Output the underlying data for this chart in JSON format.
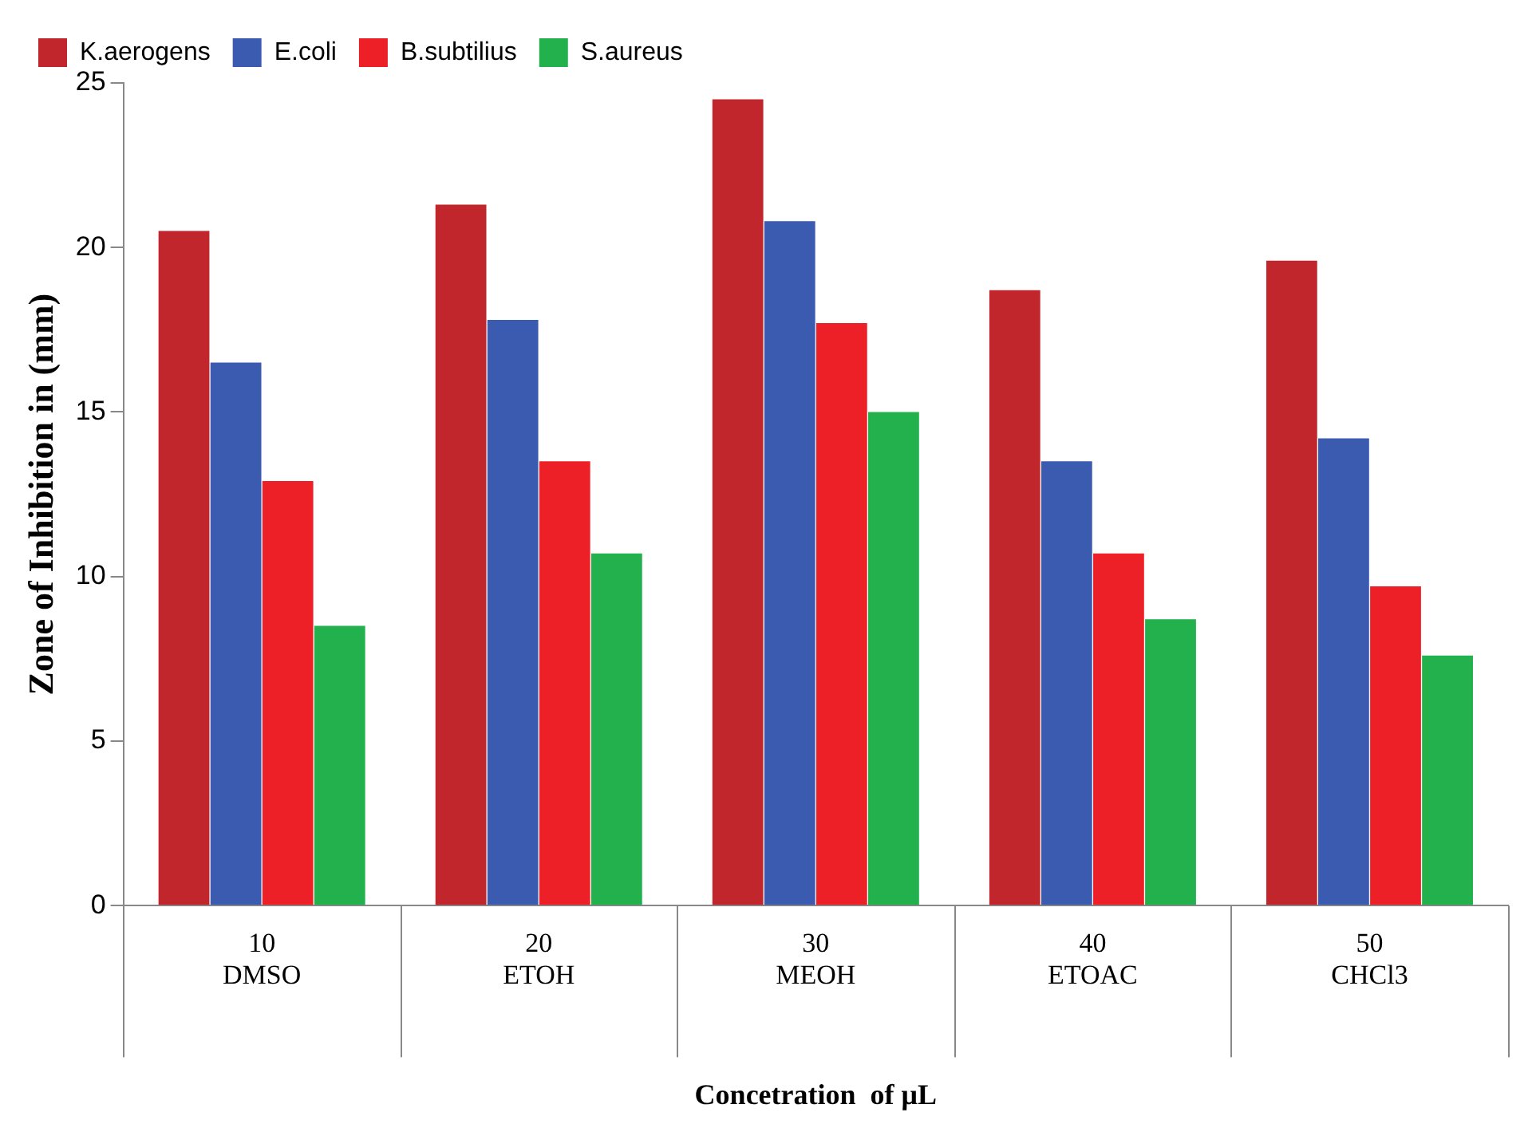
{
  "chart_data": {
    "type": "bar",
    "xlabel": "Concetration  of μL",
    "ylabel": "Zone of Inhibition in (mm)",
    "categories": [
      "10\nDMSO",
      "20\nETOH",
      "30\nMEOH",
      "40\nETOAC",
      "50\nCHCl3"
    ],
    "series": [
      {
        "name": "K.aerogens",
        "color": "#c0262c",
        "values": [
          20.5,
          21.3,
          24.5,
          18.7,
          19.6
        ]
      },
      {
        "name": "E.coli",
        "color": "#3a5bb0",
        "values": [
          16.5,
          17.8,
          20.8,
          13.5,
          14.2
        ]
      },
      {
        "name": "B.subtilius",
        "color": "#ee2027",
        "values": [
          12.9,
          13.5,
          17.7,
          10.7,
          9.7
        ]
      },
      {
        "name": "S.aureus",
        "color": "#22b14c",
        "values": [
          8.5,
          10.7,
          15,
          8.7,
          7.6
        ]
      }
    ],
    "ylim": [
      0,
      25
    ],
    "yticks": [
      0,
      5,
      10,
      15,
      20,
      25
    ],
    "grid": false,
    "legend": "top left"
  }
}
